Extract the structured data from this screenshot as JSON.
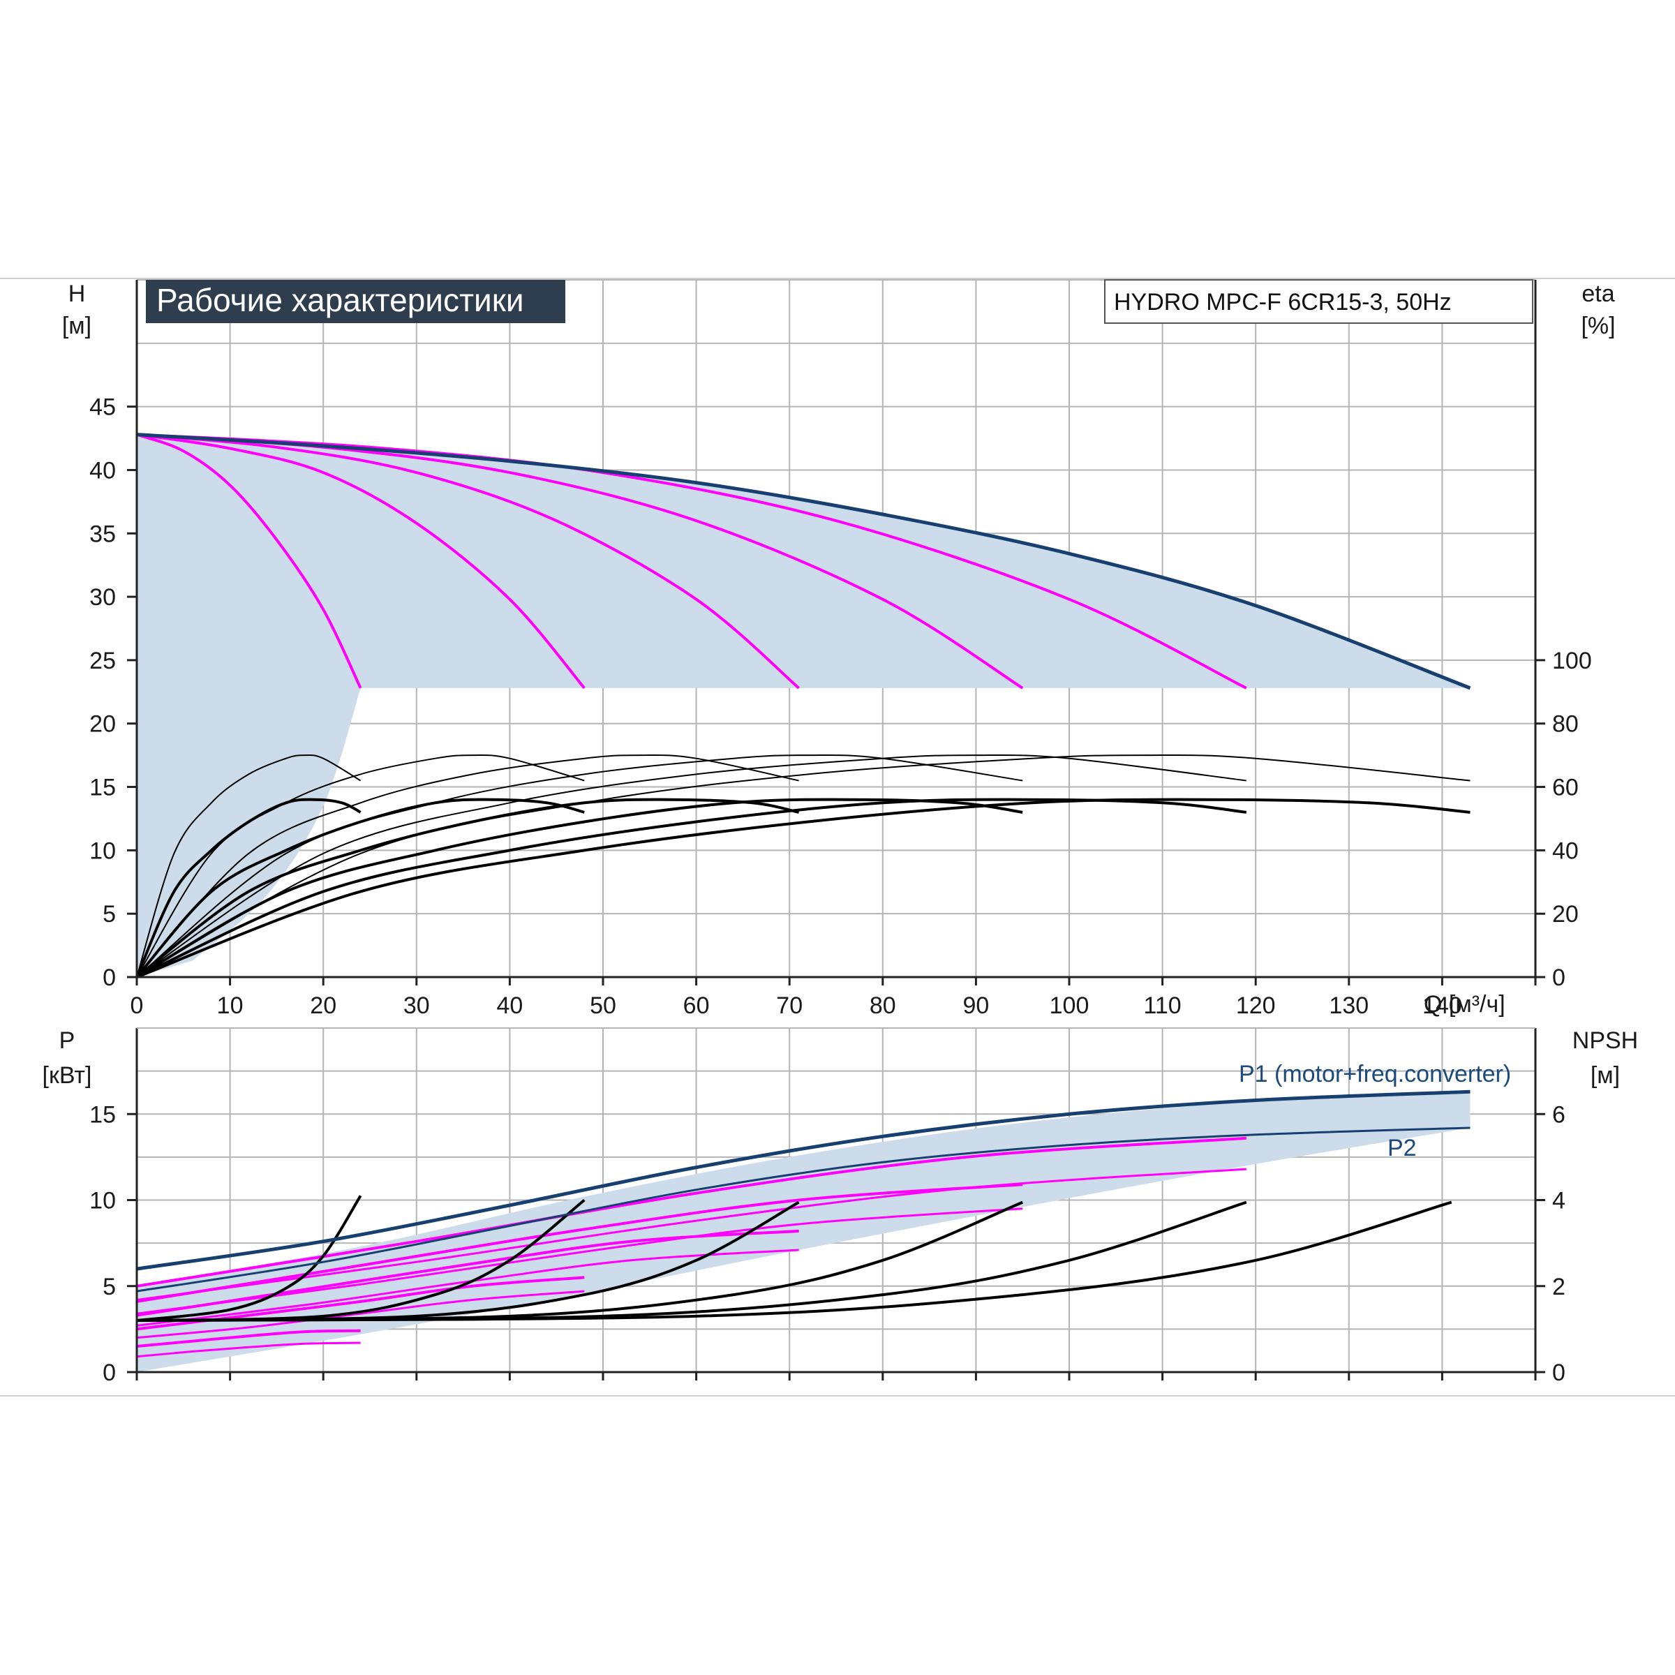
{
  "title": "Рабочие характеристики",
  "model": "HYDRO MPC-F 6CR15-3, 50Hz",
  "colors": {
    "grid": "#b4b4b4",
    "area_fill": "#cddcea",
    "max_curve": "#173f70",
    "pump_curves": "#ff00ff",
    "efficiency": "#000000",
    "title_bg": "#2f3e4e",
    "axis": "#222222"
  },
  "chart_data": [
    {
      "id": "top",
      "type": "line",
      "x_axis": {
        "ticks": [
          0,
          10,
          20,
          30,
          40,
          50,
          60,
          70,
          80,
          90,
          100,
          110,
          120,
          130,
          140
        ],
        "label": "Q [м³/ч]",
        "range": [
          0,
          150
        ]
      },
      "y_left": {
        "label_line1": "H",
        "label_line2": "[м]",
        "ticks": [
          0,
          5,
          10,
          15,
          20,
          25,
          30,
          35,
          40,
          45
        ],
        "range": [
          0,
          55
        ]
      },
      "y_right": {
        "label_line1": "eta",
        "label_line2": "[%]",
        "ticks": [
          0,
          20,
          40,
          60,
          80,
          100
        ],
        "range": [
          0,
          100
        ],
        "zero_at_H": 0,
        "hundred_at_H": 25
      },
      "grid": true,
      "operating_area": {
        "upper_x": [
          0,
          20,
          40,
          60,
          80,
          100,
          120,
          143
        ],
        "upper_H": [
          42.8,
          41.9,
          40.7,
          39,
          36.5,
          33.4,
          29.3,
          22.8
        ],
        "floor_H": 22.8,
        "floor_x_range": [
          24,
          143
        ],
        "lower_boundary_x": [
          24,
          20,
          14,
          6
        ],
        "lower_boundary_H": [
          22.8,
          13.5,
          6.5,
          1.3
        ]
      },
      "max_head_curve": {
        "x": [
          0,
          20,
          40,
          60,
          80,
          100,
          120,
          143
        ],
        "H": [
          42.8,
          41.9,
          40.7,
          39,
          36.5,
          33.4,
          29.3,
          22.8
        ]
      },
      "head_curves": [
        {
          "x": [
            0,
            5,
            10,
            15,
            20,
            24
          ],
          "H": [
            42.8,
            41.5,
            38.8,
            34.5,
            29,
            22.8
          ]
        },
        {
          "x": [
            0,
            10,
            20,
            30,
            40,
            48
          ],
          "H": [
            42.8,
            41.7,
            39.8,
            35.8,
            29.8,
            22.8
          ]
        },
        {
          "x": [
            0,
            15,
            30,
            45,
            60,
            71
          ],
          "H": [
            42.8,
            41.8,
            39.8,
            36,
            29.8,
            22.8
          ]
        },
        {
          "x": [
            0,
            20,
            40,
            60,
            80,
            95
          ],
          "H": [
            42.8,
            41.8,
            39.8,
            36,
            29.8,
            22.8
          ]
        },
        {
          "x": [
            0,
            25,
            50,
            75,
            100,
            119
          ],
          "H": [
            42.8,
            41.8,
            39.8,
            36,
            29.8,
            22.8
          ]
        }
      ],
      "efficiency_curves": [
        {
          "x": [
            0,
            4,
            8,
            12,
            16,
            18,
            20,
            24
          ],
          "eta": [
            0,
            39,
            55,
            64,
            69,
            70,
            69,
            62
          ]
        },
        {
          "x": [
            0,
            4,
            8,
            12,
            16,
            19,
            22,
            24
          ],
          "eta": [
            0,
            27,
            40,
            49,
            55,
            56,
            55,
            52
          ]
        },
        {
          "x": [
            0,
            8,
            16,
            24,
            32,
            36,
            40,
            48
          ],
          "eta": [
            0,
            39,
            55,
            64,
            69,
            70,
            69,
            62
          ]
        },
        {
          "x": [
            0,
            8,
            16,
            24,
            32,
            38,
            44,
            48
          ],
          "eta": [
            0,
            27,
            40,
            49,
            55,
            56,
            55,
            52
          ]
        },
        {
          "x": [
            0,
            12,
            24,
            36,
            48,
            54,
            60,
            71
          ],
          "eta": [
            0,
            39,
            55,
            64,
            69,
            70,
            69,
            62
          ]
        },
        {
          "x": [
            0,
            12,
            24,
            36,
            48,
            57,
            66,
            71
          ],
          "eta": [
            0,
            27,
            40,
            49,
            55,
            56,
            55,
            52
          ]
        },
        {
          "x": [
            0,
            16,
            32,
            48,
            64,
            72,
            80,
            95
          ],
          "eta": [
            0,
            39,
            55,
            64,
            69,
            70,
            69,
            62
          ]
        },
        {
          "x": [
            0,
            16,
            32,
            48,
            64,
            76,
            88,
            95
          ],
          "eta": [
            0,
            27,
            40,
            49,
            55,
            56,
            55,
            52
          ]
        },
        {
          "x": [
            0,
            20,
            40,
            60,
            80,
            90,
            100,
            119
          ],
          "eta": [
            0,
            39,
            55,
            64,
            69,
            70,
            69,
            62
          ]
        },
        {
          "x": [
            0,
            20,
            40,
            60,
            80,
            95,
            110,
            119
          ],
          "eta": [
            0,
            27,
            40,
            49,
            55,
            56,
            55,
            52
          ]
        },
        {
          "x": [
            0,
            24,
            48,
            72,
            96,
            108,
            120,
            143
          ],
          "eta": [
            0,
            39,
            55,
            64,
            69,
            70,
            69,
            62
          ]
        },
        {
          "x": [
            0,
            24,
            48,
            72,
            96,
            114,
            132,
            143
          ],
          "eta": [
            0,
            27,
            40,
            49,
            55,
            56,
            55,
            52
          ]
        }
      ]
    },
    {
      "id": "bottom",
      "type": "line",
      "x_axis": {
        "range": [
          0,
          150
        ]
      },
      "y_left": {
        "label_line1": "P",
        "label_line2": "[кВт]",
        "ticks": [
          0,
          5,
          10,
          15
        ],
        "range": [
          0,
          20
        ]
      },
      "y_right": {
        "label_line1": "NPSH",
        "label_line2": "[м]",
        "ticks": [
          0,
          2,
          4,
          6
        ],
        "range": [
          0,
          8
        ]
      },
      "grid": true,
      "band_P1": {
        "x": [
          0,
          24,
          48,
          71,
          95,
          119,
          143
        ],
        "upper": [
          5,
          7.3,
          10.2,
          12.6,
          14.5,
          15.7,
          16.2
        ],
        "lower": [
          0,
          2.2,
          4.6,
          7.1,
          9.6,
          12,
          14.2
        ]
      },
      "series": [
        {
          "name": "P1 (motor+freq.converter)",
          "x": [
            0,
            20,
            40,
            60,
            80,
            100,
            120,
            143
          ],
          "P": [
            6,
            7.6,
            9.7,
            11.9,
            13.7,
            15,
            15.8,
            16.3
          ]
        },
        {
          "name": "P2",
          "x": [
            0,
            20,
            40,
            60,
            80,
            100,
            120,
            143
          ],
          "P": [
            4.7,
            6.4,
            8.5,
            10.6,
            12.2,
            13.2,
            13.8,
            14.2
          ]
        }
      ],
      "power_curves": [
        {
          "x": [
            0,
            6,
            12,
            18,
            24
          ],
          "P": [
            1.5,
            1.8,
            2.1,
            2.35,
            2.4
          ]
        },
        {
          "x": [
            0,
            6,
            12,
            18,
            24
          ],
          "P": [
            0.9,
            1.2,
            1.45,
            1.65,
            1.7
          ]
        },
        {
          "x": [
            0,
            12,
            24,
            36,
            48
          ],
          "P": [
            2.5,
            3.3,
            4.1,
            5,
            5.5
          ]
        },
        {
          "x": [
            0,
            12,
            24,
            36,
            48
          ],
          "P": [
            2,
            2.6,
            3.4,
            4.2,
            4.7
          ]
        },
        {
          "x": [
            0,
            18,
            36,
            53,
            71
          ],
          "P": [
            3.3,
            4.8,
            6.3,
            7.6,
            8.2
          ]
        },
        {
          "x": [
            0,
            18,
            36,
            53,
            71
          ],
          "P": [
            2.7,
            3.9,
            5.3,
            6.5,
            7.1
          ]
        },
        {
          "x": [
            0,
            24,
            48,
            71,
            95
          ],
          "P": [
            4.1,
            6.2,
            8.3,
            10,
            10.9
          ]
        },
        {
          "x": [
            0,
            24,
            48,
            71,
            95
          ],
          "P": [
            3.4,
            5.1,
            7,
            8.6,
            9.5
          ]
        },
        {
          "x": [
            0,
            30,
            60,
            89,
            119
          ],
          "P": [
            5,
            7.6,
            10.4,
            12.5,
            13.6
          ]
        },
        {
          "x": [
            0,
            30,
            60,
            89,
            119
          ],
          "P": [
            4.2,
            6.4,
            8.8,
            10.7,
            11.8
          ]
        }
      ],
      "npsh_curves": [
        {
          "x": [
            0,
            10,
            16,
            20,
            24
          ],
          "NPSH": [
            1.2,
            1.45,
            1.95,
            2.7,
            4.1
          ]
        },
        {
          "x": [
            0,
            20,
            32,
            40,
            48
          ],
          "NPSH": [
            1.2,
            1.3,
            1.8,
            2.6,
            4
          ]
        },
        {
          "x": [
            0,
            30,
            48,
            60,
            71
          ],
          "NPSH": [
            1.2,
            1.3,
            1.8,
            2.6,
            3.95
          ]
        },
        {
          "x": [
            0,
            40,
            64,
            80,
            95
          ],
          "NPSH": [
            1.2,
            1.3,
            1.8,
            2.6,
            3.95
          ]
        },
        {
          "x": [
            0,
            50,
            80,
            100,
            119
          ],
          "NPSH": [
            1.2,
            1.3,
            1.8,
            2.6,
            3.95
          ]
        },
        {
          "x": [
            0,
            60,
            95,
            120,
            141
          ],
          "NPSH": [
            1.2,
            1.3,
            1.8,
            2.6,
            3.95
          ]
        }
      ]
    }
  ]
}
